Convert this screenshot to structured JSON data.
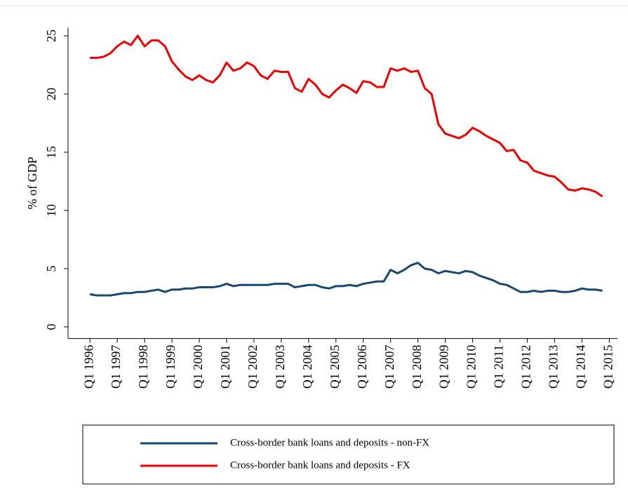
{
  "chart_data": {
    "type": "line",
    "y_label": "% of GDP",
    "x": [
      1996,
      1996.25,
      1996.5,
      1996.75,
      1997,
      1997.25,
      1997.5,
      1997.75,
      1998,
      1998.25,
      1998.5,
      1998.75,
      1999,
      1999.25,
      1999.5,
      1999.75,
      2000,
      2000.25,
      2000.5,
      2000.75,
      2001,
      2001.25,
      2001.5,
      2001.75,
      2002,
      2002.25,
      2002.5,
      2002.75,
      2003,
      2003.25,
      2003.5,
      2003.75,
      2004,
      2004.25,
      2004.5,
      2004.75,
      2005,
      2005.25,
      2005.5,
      2005.75,
      2006,
      2006.25,
      2006.5,
      2006.75,
      2007,
      2007.25,
      2007.5,
      2007.75,
      2008,
      2008.25,
      2008.5,
      2008.75,
      2009,
      2009.25,
      2009.5,
      2009.75,
      2010,
      2010.25,
      2010.5,
      2010.75,
      2011,
      2011.25,
      2011.5,
      2011.75,
      2012,
      2012.25,
      2012.5,
      2012.75,
      2013,
      2013.25,
      2013.5,
      2013.75,
      2014,
      2014.25,
      2014.5,
      2014.75
    ],
    "series": [
      {
        "name": "Cross-border bank loans and deposits - non-FX",
        "color": "#1a476f",
        "values": [
          2.8,
          2.7,
          2.7,
          2.7,
          2.8,
          2.9,
          2.9,
          3.0,
          3.0,
          3.1,
          3.2,
          3.0,
          3.2,
          3.2,
          3.3,
          3.3,
          3.4,
          3.4,
          3.4,
          3.5,
          3.7,
          3.5,
          3.6,
          3.6,
          3.6,
          3.6,
          3.6,
          3.7,
          3.7,
          3.7,
          3.4,
          3.5,
          3.6,
          3.6,
          3.4,
          3.3,
          3.5,
          3.5,
          3.6,
          3.5,
          3.7,
          3.8,
          3.9,
          3.9,
          4.9,
          4.6,
          4.9,
          5.3,
          5.5,
          5.0,
          4.9,
          4.6,
          4.8,
          4.7,
          4.6,
          4.8,
          4.7,
          4.4,
          4.2,
          4.0,
          3.7,
          3.6,
          3.3,
          3.0,
          3.0,
          3.1,
          3.0,
          3.1,
          3.1,
          3.0,
          3.0,
          3.1,
          3.3,
          3.2,
          3.2,
          3.1
        ]
      },
      {
        "name": "Cross-border bank loans and deposits - FX",
        "color": "#ee0000",
        "values": [
          23.1,
          23.1,
          23.2,
          23.5,
          24.1,
          24.5,
          24.2,
          25.0,
          24.1,
          24.6,
          24.6,
          24.1,
          22.8,
          22.1,
          21.5,
          21.2,
          21.6,
          21.2,
          21.0,
          21.6,
          22.7,
          22.0,
          22.2,
          22.7,
          22.4,
          21.6,
          21.3,
          22.0,
          21.9,
          21.9,
          20.5,
          20.2,
          21.3,
          20.8,
          20.0,
          19.7,
          20.3,
          20.8,
          20.5,
          20.1,
          21.1,
          21.0,
          20.6,
          20.6,
          22.2,
          22.0,
          22.2,
          21.9,
          22.0,
          20.5,
          20.0,
          17.4,
          16.6,
          16.4,
          16.2,
          16.5,
          17.1,
          16.8,
          16.4,
          16.1,
          15.8,
          15.1,
          15.2,
          14.3,
          14.1,
          13.4,
          13.2,
          13.0,
          12.9,
          12.4,
          11.8,
          11.7,
          11.9,
          11.8,
          11.6,
          11.2
        ]
      }
    ],
    "xlim": [
      1995.2,
      2015.3
    ],
    "xticks": [
      {
        "value": 1996,
        "label": "Q1 1996"
      },
      {
        "value": 1997,
        "label": "Q1 1997"
      },
      {
        "value": 1998,
        "label": "Q1 1998"
      },
      {
        "value": 1999,
        "label": "Q1 1999"
      },
      {
        "value": 2000,
        "label": "Q1 2000"
      },
      {
        "value": 2001,
        "label": "Q1 2001"
      },
      {
        "value": 2002,
        "label": "Q1 2002"
      },
      {
        "value": 2003,
        "label": "Q1 2003"
      },
      {
        "value": 2004,
        "label": "Q1 2004"
      },
      {
        "value": 2005,
        "label": "Q1 2005"
      },
      {
        "value": 2006,
        "label": "Q1 2006"
      },
      {
        "value": 2007,
        "label": "Q1 2007"
      },
      {
        "value": 2008,
        "label": "Q1 2008"
      },
      {
        "value": 2009,
        "label": "Q1 2009"
      },
      {
        "value": 2010,
        "label": "Q1 2010"
      },
      {
        "value": 2011,
        "label": "Q1 2011"
      },
      {
        "value": 2012,
        "label": "Q1 2012"
      },
      {
        "value": 2013,
        "label": "Q1 2013"
      },
      {
        "value": 2014,
        "label": "Q1 2014"
      },
      {
        "value": 2015,
        "label": "Q1 2015"
      }
    ],
    "ylim": [
      -1,
      25.7
    ],
    "yticks": [
      0,
      5,
      10,
      15,
      20,
      25
    ],
    "legend": "bottom"
  }
}
